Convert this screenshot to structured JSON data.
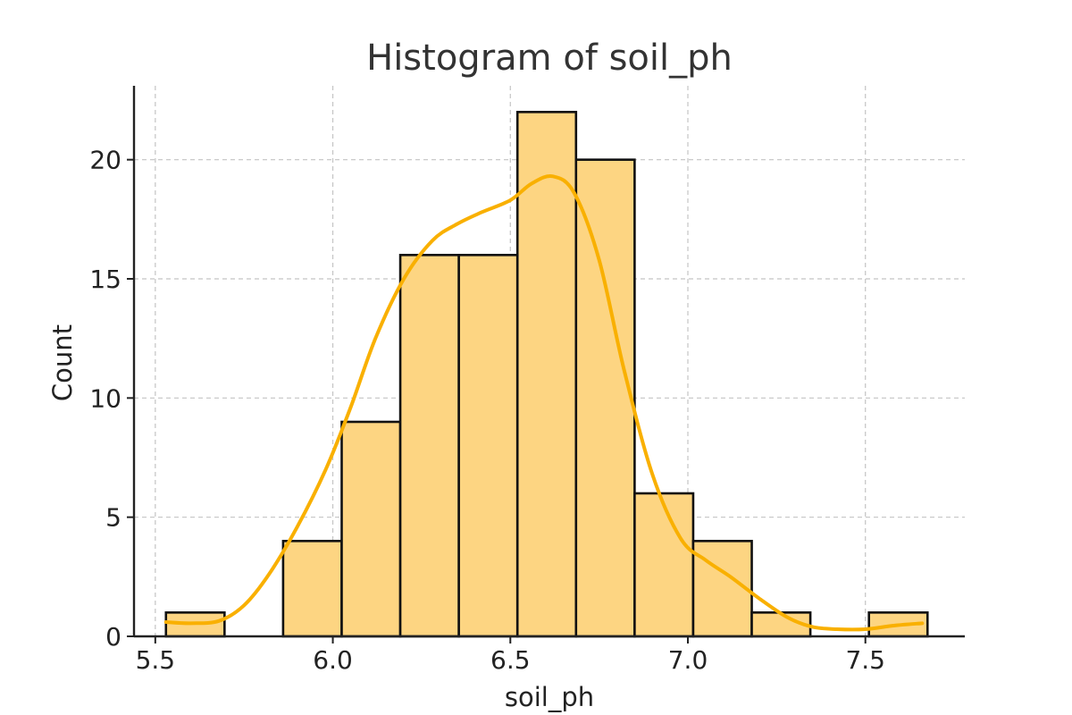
{
  "chart_data": {
    "type": "bar",
    "subtype": "histogram",
    "title": "Histogram of soil_ph",
    "xlabel": "soil_ph",
    "ylabel": "Count",
    "xlim": [
      5.44,
      7.78
    ],
    "ylim": [
      0,
      23.1
    ],
    "xticks": [
      "5.5",
      "6.0",
      "6.5",
      "7.0",
      "7.5"
    ],
    "xtick_values": [
      5.5,
      6.0,
      6.5,
      7.0,
      7.5
    ],
    "yticks": [
      "0",
      "5",
      "10",
      "15",
      "20"
    ],
    "ytick_values": [
      0,
      5,
      10,
      15,
      20
    ],
    "grid": true,
    "bins": [
      {
        "start": 5.53,
        "end": 5.695,
        "count": 1
      },
      {
        "start": 5.695,
        "end": 5.86,
        "count": 0
      },
      {
        "start": 5.86,
        "end": 6.025,
        "count": 4
      },
      {
        "start": 6.025,
        "end": 6.19,
        "count": 9
      },
      {
        "start": 6.19,
        "end": 6.355,
        "count": 16
      },
      {
        "start": 6.355,
        "end": 6.52,
        "count": 16
      },
      {
        "start": 6.52,
        "end": 6.685,
        "count": 22
      },
      {
        "start": 6.685,
        "end": 6.85,
        "count": 20
      },
      {
        "start": 6.85,
        "end": 7.015,
        "count": 6
      },
      {
        "start": 7.015,
        "end": 7.18,
        "count": 4
      },
      {
        "start": 7.18,
        "end": 7.345,
        "count": 1
      },
      {
        "start": 7.345,
        "end": 7.51,
        "count": 0
      },
      {
        "start": 7.51,
        "end": 7.675,
        "count": 1
      }
    ],
    "kde": {
      "x": [
        5.53,
        5.6,
        5.68,
        5.75,
        5.82,
        5.9,
        5.98,
        6.05,
        6.12,
        6.2,
        6.28,
        6.35,
        6.42,
        6.5,
        6.56,
        6.62,
        6.68,
        6.75,
        6.82,
        6.9,
        6.98,
        7.05,
        7.12,
        7.2,
        7.28,
        7.35,
        7.42,
        7.5,
        7.58,
        7.66
      ],
      "y": [
        0.6,
        0.55,
        0.65,
        1.3,
        2.6,
        4.6,
        7.0,
        9.6,
        12.5,
        15.0,
        16.6,
        17.3,
        17.8,
        18.3,
        19.0,
        19.3,
        18.6,
        15.8,
        11.2,
        6.8,
        4.1,
        3.2,
        2.5,
        1.6,
        0.8,
        0.4,
        0.3,
        0.3,
        0.45,
        0.55
      ]
    },
    "colors": {
      "bar_fill": "#fdd582",
      "bar_edge": "#111111",
      "kde_line": "#f9b000"
    }
  }
}
